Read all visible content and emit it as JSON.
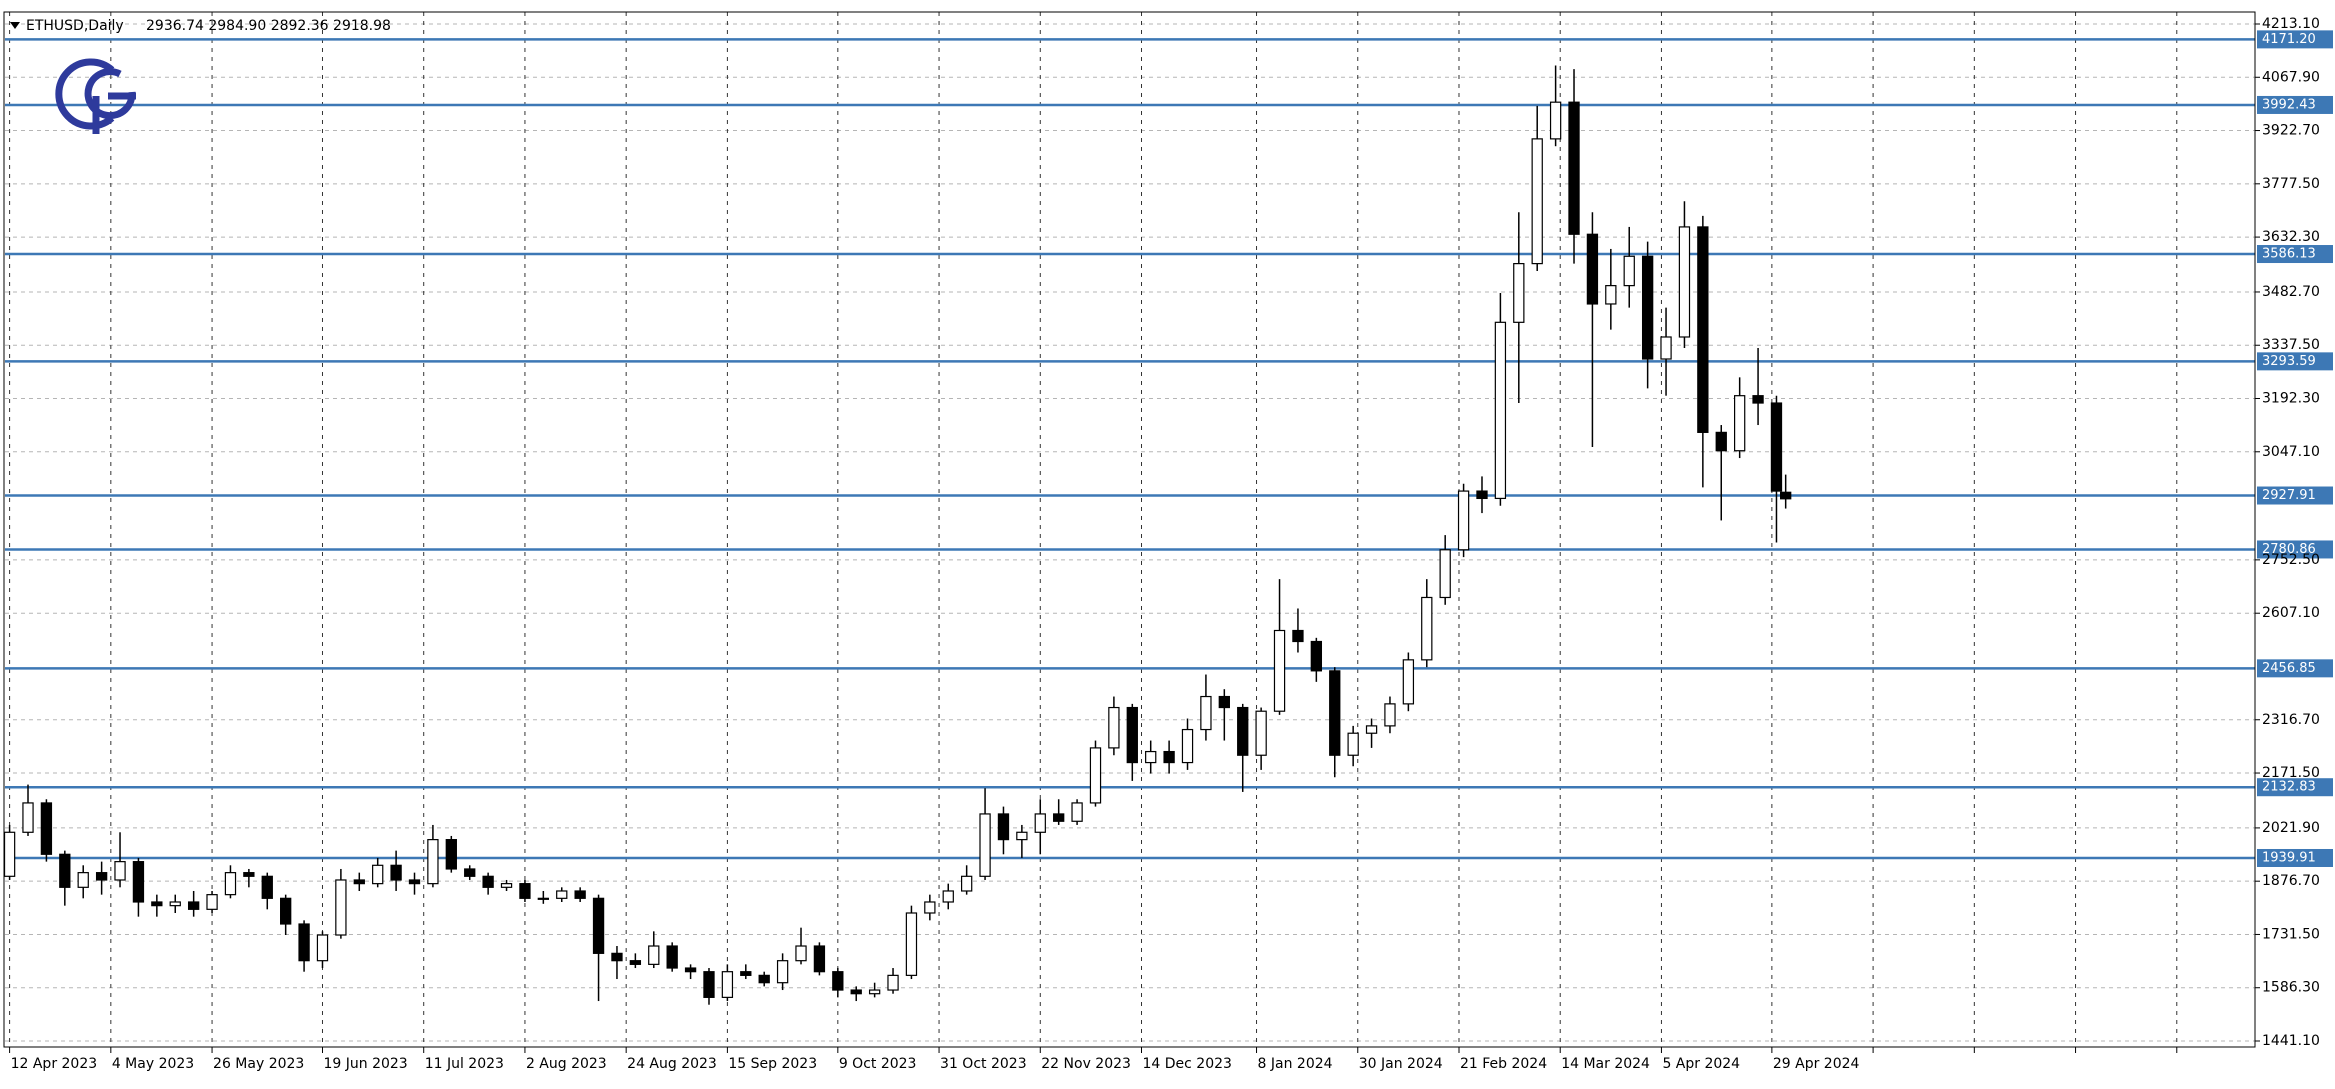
{
  "chart_data": {
    "type": "candlestick",
    "title": "ETHUSD,Daily",
    "quote": "2936.74 2984.90 2892.36 2918.98",
    "x": [
      "2023-04-12",
      "2023-04-16",
      "2023-04-20",
      "2023-04-24",
      "2023-04-28",
      "2023-05-02",
      "2023-05-06",
      "2023-05-10",
      "2023-05-14",
      "2023-05-18",
      "2023-05-22",
      "2023-05-26",
      "2023-05-30",
      "2023-06-03",
      "2023-06-07",
      "2023-06-11",
      "2023-06-15",
      "2023-06-19",
      "2023-06-23",
      "2023-06-27",
      "2023-07-01",
      "2023-07-05",
      "2023-07-09",
      "2023-07-13",
      "2023-07-17",
      "2023-07-21",
      "2023-07-25",
      "2023-07-29",
      "2023-08-02",
      "2023-08-06",
      "2023-08-10",
      "2023-08-14",
      "2023-08-18",
      "2023-08-22",
      "2023-08-26",
      "2023-08-30",
      "2023-09-03",
      "2023-09-07",
      "2023-09-11",
      "2023-09-15",
      "2023-09-19",
      "2023-09-23",
      "2023-09-27",
      "2023-10-01",
      "2023-10-05",
      "2023-10-09",
      "2023-10-13",
      "2023-10-17",
      "2023-10-21",
      "2023-10-25",
      "2023-10-29",
      "2023-11-02",
      "2023-11-06",
      "2023-11-10",
      "2023-11-14",
      "2023-11-18",
      "2023-11-22",
      "2023-11-26",
      "2023-11-30",
      "2023-12-04",
      "2023-12-08",
      "2023-12-12",
      "2023-12-16",
      "2023-12-20",
      "2023-12-24",
      "2023-12-28",
      "2024-01-01",
      "2024-01-05",
      "2024-01-09",
      "2024-01-13",
      "2024-01-17",
      "2024-01-21",
      "2024-01-25",
      "2024-01-29",
      "2024-02-02",
      "2024-02-06",
      "2024-02-10",
      "2024-02-14",
      "2024-02-18",
      "2024-02-22",
      "2024-02-26",
      "2024-03-01",
      "2024-03-05",
      "2024-03-09",
      "2024-03-13",
      "2024-03-17",
      "2024-03-21",
      "2024-03-25",
      "2024-03-29",
      "2024-04-02",
      "2024-04-06",
      "2024-04-10",
      "2024-04-14",
      "2024-04-18",
      "2024-04-22",
      "2024-04-26",
      "2024-04-30",
      "2024-05-02"
    ],
    "open": [
      1890,
      2010,
      2090,
      1950,
      1860,
      1900,
      1880,
      1930,
      1820,
      1810,
      1820,
      1800,
      1840,
      1900,
      1890,
      1830,
      1760,
      1660,
      1730,
      1880,
      1870,
      1920,
      1880,
      1870,
      1990,
      1910,
      1890,
      1860,
      1870,
      1830,
      1830,
      1850,
      1830,
      1680,
      1660,
      1650,
      1700,
      1640,
      1630,
      1560,
      1630,
      1620,
      1600,
      1660,
      1700,
      1630,
      1580,
      1570,
      1580,
      1620,
      1790,
      1820,
      1850,
      1890,
      2060,
      1990,
      2010,
      2060,
      2040,
      2090,
      2240,
      2350,
      2200,
      2230,
      2200,
      2290,
      2380,
      2350,
      2220,
      2340,
      2560,
      2530,
      2450,
      2220,
      2280,
      2300,
      2360,
      2480,
      2650,
      2780,
      2940,
      2920,
      3400,
      3560,
      3900,
      4000,
      3640,
      3450,
      3500,
      3580,
      3300,
      3360,
      3660,
      3100,
      3050,
      3200,
      3180,
      2936.74
    ],
    "high": [
      2030,
      2140,
      2100,
      1960,
      1920,
      1930,
      2010,
      1940,
      1840,
      1840,
      1850,
      1850,
      1920,
      1910,
      1900,
      1840,
      1770,
      1740,
      1910,
      1900,
      1940,
      1960,
      1900,
      2030,
      2000,
      1920,
      1900,
      1880,
      1880,
      1850,
      1860,
      1860,
      1840,
      1700,
      1680,
      1740,
      1710,
      1650,
      1640,
      1650,
      1650,
      1630,
      1680,
      1750,
      1710,
      1640,
      1590,
      1600,
      1640,
      1810,
      1840,
      1870,
      1920,
      2130,
      2080,
      2030,
      2100,
      2100,
      2100,
      2260,
      2380,
      2360,
      2260,
      2260,
      2320,
      2440,
      2400,
      2360,
      2350,
      2700,
      2620,
      2540,
      2460,
      2300,
      2320,
      2380,
      2500,
      2700,
      2820,
      2960,
      2980,
      3480,
      3700,
      3990,
      4100,
      4090,
      3700,
      3600,
      3660,
      3620,
      3440,
      3730,
      3690,
      3120,
      3250,
      3330,
      3200,
      2984.9
    ],
    "low": [
      1880,
      2000,
      1930,
      1810,
      1830,
      1840,
      1860,
      1780,
      1780,
      1790,
      1780,
      1790,
      1830,
      1860,
      1800,
      1730,
      1630,
      1640,
      1720,
      1850,
      1860,
      1850,
      1840,
      1860,
      1900,
      1880,
      1840,
      1850,
      1820,
      1815,
      1820,
      1820,
      1550,
      1610,
      1640,
      1640,
      1630,
      1610,
      1540,
      1550,
      1610,
      1590,
      1580,
      1650,
      1620,
      1560,
      1550,
      1560,
      1570,
      1610,
      1770,
      1800,
      1840,
      1880,
      1950,
      1940,
      1950,
      2030,
      2030,
      2080,
      2220,
      2150,
      2170,
      2170,
      2180,
      2260,
      2260,
      2120,
      2180,
      2330,
      2500,
      2420,
      2160,
      2190,
      2240,
      2280,
      2340,
      2460,
      2630,
      2760,
      2880,
      2900,
      3180,
      3540,
      3880,
      3560,
      3060,
      3380,
      3440,
      3220,
      3200,
      3330,
      2950,
      2860,
      3030,
      3120,
      2800,
      2892.36
    ],
    "close": [
      2010,
      2090,
      1950,
      1860,
      1900,
      1880,
      1930,
      1820,
      1810,
      1820,
      1800,
      1840,
      1900,
      1890,
      1830,
      1760,
      1660,
      1730,
      1880,
      1870,
      1920,
      1880,
      1870,
      1990,
      1910,
      1890,
      1860,
      1870,
      1830,
      1830,
      1850,
      1830,
      1680,
      1660,
      1650,
      1700,
      1640,
      1630,
      1560,
      1630,
      1620,
      1600,
      1660,
      1700,
      1630,
      1580,
      1570,
      1580,
      1620,
      1790,
      1820,
      1850,
      1890,
      2060,
      1990,
      2010,
      2060,
      2040,
      2090,
      2240,
      2350,
      2200,
      2230,
      2200,
      2290,
      2380,
      2350,
      2220,
      2340,
      2560,
      2530,
      2450,
      2220,
      2280,
      2300,
      2360,
      2480,
      2650,
      2780,
      2940,
      2920,
      3400,
      3560,
      3900,
      4000,
      3640,
      3450,
      3500,
      3580,
      3300,
      3360,
      3660,
      3100,
      3050,
      3200,
      3180,
      2940,
      2918.98
    ],
    "colors": {
      "up": "#ffffff",
      "down": "#000000",
      "wick": "#000000"
    },
    "levels": [
      {
        "value": 4171.2,
        "label": "4171.20"
      },
      {
        "value": 3992.43,
        "label": "3992.43"
      },
      {
        "value": 3586.13,
        "label": "3586.13"
      },
      {
        "value": 3293.59,
        "label": "3293.59"
      },
      {
        "value": 2927.91,
        "label": "2927.91"
      },
      {
        "value": 2780.86,
        "label": "2780.86"
      },
      {
        "value": 2456.85,
        "label": "2456.85"
      },
      {
        "value": 2132.83,
        "label": "2132.83"
      },
      {
        "value": 1939.91,
        "label": "1939.91"
      }
    ],
    "level_color": "#3d78b5",
    "ylim": [
      1441.1,
      4213.1
    ],
    "yticks": [
      {
        "value": 4213.1,
        "label": "4213.10"
      },
      {
        "value": 4067.9,
        "label": "4067.90"
      },
      {
        "value": 3922.7,
        "label": "3922.70"
      },
      {
        "value": 3777.5,
        "label": "3777.50"
      },
      {
        "value": 3632.3,
        "label": "3632.30"
      },
      {
        "value": 3482.7,
        "label": "3482.70"
      },
      {
        "value": 3337.5,
        "label": "3337.50"
      },
      {
        "value": 3192.3,
        "label": "3192.30"
      },
      {
        "value": 3047.1,
        "label": "3047.10"
      },
      {
        "value": 2752.5,
        "label": "2752.50"
      },
      {
        "value": 2607.1,
        "label": "2607.10"
      },
      {
        "value": 2316.7,
        "label": "2316.70"
      },
      {
        "value": 2171.5,
        "label": "2171.50"
      },
      {
        "value": 2021.9,
        "label": "2021.90"
      },
      {
        "value": 1876.7,
        "label": "1876.70"
      },
      {
        "value": 1731.5,
        "label": "1731.50"
      },
      {
        "value": 1586.3,
        "label": "1586.30"
      },
      {
        "value": 1441.1,
        "label": "1441.10"
      }
    ],
    "xlim": [
      "2023-04-11",
      "2024-08-12"
    ],
    "xticks": [
      {
        "value": "2023-04-12",
        "label": "12 Apr 2023"
      },
      {
        "value": "2023-05-04",
        "label": "4 May 2023"
      },
      {
        "value": "2023-05-26",
        "label": "26 May 2023"
      },
      {
        "value": "2023-06-19",
        "label": "19 Jun 2023"
      },
      {
        "value": "2023-07-11",
        "label": "11 Jul 2023"
      },
      {
        "value": "2023-08-02",
        "label": "2 Aug 2023"
      },
      {
        "value": "2023-08-24",
        "label": "24 Aug 2023"
      },
      {
        "value": "2023-09-15",
        "label": "15 Sep 2023"
      },
      {
        "value": "2023-10-09",
        "label": "9 Oct 2023"
      },
      {
        "value": "2023-10-31",
        "label": "31 Oct 2023"
      },
      {
        "value": "2023-11-22",
        "label": "22 Nov 2023"
      },
      {
        "value": "2023-12-14",
        "label": "14 Dec 2023"
      },
      {
        "value": "2024-01-08",
        "label": "8 Jan 2024"
      },
      {
        "value": "2024-01-30",
        "label": "30 Jan 2024"
      },
      {
        "value": "2024-02-21",
        "label": "21 Feb 2024"
      },
      {
        "value": "2024-03-14",
        "label": "14 Mar 2024"
      },
      {
        "value": "2024-04-05",
        "label": "5 Apr 2024"
      },
      {
        "value": "2024-04-29",
        "label": "29 Apr 2024"
      },
      {
        "value": "2024-05-21",
        "label": null
      },
      {
        "value": "2024-06-12",
        "label": null
      },
      {
        "value": "2024-07-04",
        "label": null
      },
      {
        "value": "2024-07-26",
        "label": null
      }
    ],
    "grid": true
  }
}
